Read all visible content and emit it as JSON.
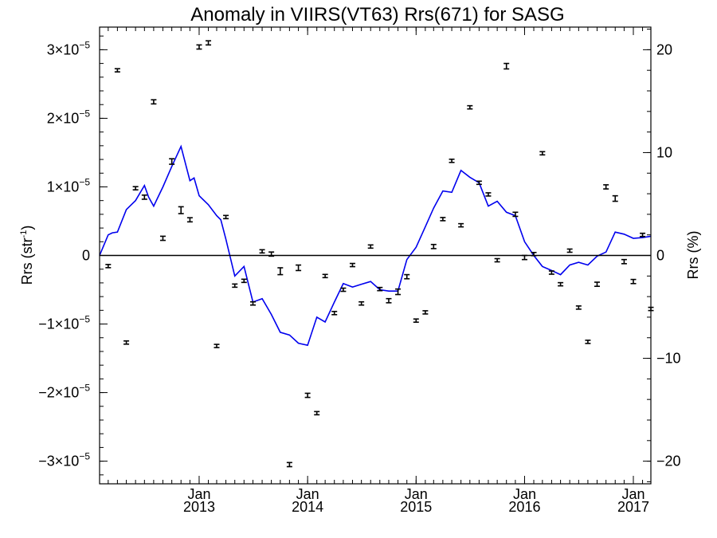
{
  "chart_data": {
    "type": "scatter",
    "title": "Anomaly in VIIRS(VT63) Rrs(671) for SASG",
    "ylabel": "Rrs (str",
    "ylabel_sup": "-1",
    "ylabel_close": ")",
    "y2label": "Rrs (%)",
    "xlim": [
      "2012-02-01",
      "2017-03-01"
    ],
    "ylim": [
      -3.33e-05,
      3.33e-05
    ],
    "y2lim": [
      -22.2,
      22.2
    ],
    "grid": false,
    "x_ticks": [
      {
        "date": "2013-01-01",
        "line1": "Jan",
        "line2": "2013"
      },
      {
        "date": "2014-01-01",
        "line1": "Jan",
        "line2": "2014"
      },
      {
        "date": "2015-01-01",
        "line1": "Jan",
        "line2": "2015"
      },
      {
        "date": "2016-01-01",
        "line1": "Jan",
        "line2": "2016"
      },
      {
        "date": "2017-01-01",
        "line1": "Jan",
        "line2": "2017"
      }
    ],
    "y_ticks": [
      {
        "value": 3e-05,
        "mant": "3×10",
        "exp": "−5"
      },
      {
        "value": 2e-05,
        "mant": "2×10",
        "exp": "−5"
      },
      {
        "value": 1e-05,
        "mant": "1×10",
        "exp": "−5"
      },
      {
        "value": 0,
        "mant": "0",
        "exp": ""
      },
      {
        "value": -1e-05,
        "mant": "−1×10",
        "exp": "−5"
      },
      {
        "value": -2e-05,
        "mant": "−2×10",
        "exp": "−5"
      },
      {
        "value": -3e-05,
        "mant": "−3×10",
        "exp": "−5"
      }
    ],
    "y2_ticks": [
      {
        "value": 20,
        "label": "20"
      },
      {
        "value": 10,
        "label": "10"
      },
      {
        "value": 0,
        "label": "0"
      },
      {
        "value": -10,
        "label": "−10"
      },
      {
        "value": -20,
        "label": "−20"
      }
    ],
    "series": [
      {
        "kind": "points_with_errorbars",
        "color": "#000000",
        "points": [
          {
            "x": "2012-03-01",
            "y": -1.55e-06,
            "err": 2e-07
          },
          {
            "x": "2012-04-01",
            "y": 2.7e-05,
            "err": 2e-07
          },
          {
            "x": "2012-05-01",
            "y": -1.27e-05,
            "err": 2e-07
          },
          {
            "x": "2012-06-01",
            "y": 9.8e-06,
            "err": 2e-07
          },
          {
            "x": "2012-07-01",
            "y": 8.5e-06,
            "err": 3e-07
          },
          {
            "x": "2012-08-01",
            "y": 2.24e-05,
            "err": 3e-07
          },
          {
            "x": "2012-09-01",
            "y": 2.5e-06,
            "err": 3e-07
          },
          {
            "x": "2012-10-01",
            "y": 1.37e-05,
            "err": 4e-07
          },
          {
            "x": "2012-11-01",
            "y": 6.6e-06,
            "err": 5e-07
          },
          {
            "x": "2012-12-01",
            "y": 5.2e-06,
            "err": 3e-07
          },
          {
            "x": "2013-01-01",
            "y": 3.04e-05,
            "err": 3e-07
          },
          {
            "x": "2013-02-01",
            "y": 3.1e-05,
            "err": 3e-07
          },
          {
            "x": "2013-03-01",
            "y": -1.32e-05,
            "err": 2e-07
          },
          {
            "x": "2013-04-01",
            "y": 5.6e-06,
            "err": 2e-07
          },
          {
            "x": "2013-05-01",
            "y": -4.4e-06,
            "err": 2e-07
          },
          {
            "x": "2013-06-01",
            "y": -3.7e-06,
            "err": 2e-07
          },
          {
            "x": "2013-07-01",
            "y": -7e-06,
            "err": 2e-07
          },
          {
            "x": "2013-08-01",
            "y": 6e-07,
            "err": 2e-07
          },
          {
            "x": "2013-09-01",
            "y": 2e-07,
            "err": 3e-07
          },
          {
            "x": "2013-10-01",
            "y": -2.3e-06,
            "err": 5e-07
          },
          {
            "x": "2013-11-01",
            "y": -3.05e-05,
            "err": 3e-07
          },
          {
            "x": "2013-12-01",
            "y": -1.8e-06,
            "err": 4e-07
          },
          {
            "x": "2014-01-01",
            "y": -2.04e-05,
            "err": 3e-07
          },
          {
            "x": "2014-02-01",
            "y": -2.3e-05,
            "err": 2e-07
          },
          {
            "x": "2014-03-01",
            "y": -3e-06,
            "err": 2e-07
          },
          {
            "x": "2014-04-01",
            "y": -8.4e-06,
            "err": 2e-07
          },
          {
            "x": "2014-05-01",
            "y": -5e-06,
            "err": 2e-07
          },
          {
            "x": "2014-06-01",
            "y": -1.4e-06,
            "err": 2e-07
          },
          {
            "x": "2014-07-01",
            "y": -7e-06,
            "err": 2e-07
          },
          {
            "x": "2014-08-01",
            "y": 1.3e-06,
            "err": 2e-07
          },
          {
            "x": "2014-09-01",
            "y": -4.9e-06,
            "err": 2e-07
          },
          {
            "x": "2014-10-01",
            "y": -6.6e-06,
            "err": 3e-07
          },
          {
            "x": "2014-11-01",
            "y": -5.3e-06,
            "err": 4e-07
          },
          {
            "x": "2014-12-01",
            "y": -3.1e-06,
            "err": 3e-07
          },
          {
            "x": "2015-01-01",
            "y": -9.5e-06,
            "err": 2e-07
          },
          {
            "x": "2015-02-01",
            "y": -8.3e-06,
            "err": 2e-07
          },
          {
            "x": "2015-03-01",
            "y": 1.3e-06,
            "err": 3e-07
          },
          {
            "x": "2015-04-01",
            "y": 5.3e-06,
            "err": 2e-07
          },
          {
            "x": "2015-05-01",
            "y": 1.38e-05,
            "err": 2e-07
          },
          {
            "x": "2015-06-01",
            "y": 4.4e-06,
            "err": 2e-07
          },
          {
            "x": "2015-07-01",
            "y": 2.16e-05,
            "err": 2e-07
          },
          {
            "x": "2015-08-01",
            "y": 1.06e-05,
            "err": 2e-07
          },
          {
            "x": "2015-09-01",
            "y": 8.9e-06,
            "err": 2e-07
          },
          {
            "x": "2015-10-01",
            "y": -7e-07,
            "err": 2e-07
          },
          {
            "x": "2015-11-01",
            "y": 2.76e-05,
            "err": 4e-07
          },
          {
            "x": "2015-12-01",
            "y": 6e-06,
            "err": 3e-07
          },
          {
            "x": "2016-01-01",
            "y": -3e-07,
            "err": 3e-07
          },
          {
            "x": "2016-02-01",
            "y": 2e-07,
            "err": 2e-07
          },
          {
            "x": "2016-03-01",
            "y": 1.49e-05,
            "err": 2e-07
          },
          {
            "x": "2016-04-01",
            "y": -2.5e-06,
            "err": 2e-07
          },
          {
            "x": "2016-05-01",
            "y": -4.2e-06,
            "err": 2e-07
          },
          {
            "x": "2016-06-01",
            "y": 7e-07,
            "err": 2e-07
          },
          {
            "x": "2016-07-01",
            "y": -7.6e-06,
            "err": 2e-07
          },
          {
            "x": "2016-08-01",
            "y": -1.26e-05,
            "err": 2e-07
          },
          {
            "x": "2016-09-01",
            "y": -4.2e-06,
            "err": 3e-07
          },
          {
            "x": "2016-10-01",
            "y": 1e-05,
            "err": 3e-07
          },
          {
            "x": "2016-11-01",
            "y": 8.3e-06,
            "err": 4e-07
          },
          {
            "x": "2016-12-01",
            "y": -9e-07,
            "err": 3e-07
          },
          {
            "x": "2017-01-01",
            "y": -3.8e-06,
            "err": 3e-07
          },
          {
            "x": "2017-02-01",
            "y": 3e-06,
            "err": 2e-07
          },
          {
            "x": "2017-03-01",
            "y": -7.8e-06,
            "err": 2e-07
          }
        ]
      },
      {
        "kind": "line",
        "color": "#0000ee",
        "x": [
          "2012-02-01",
          "2012-03-01",
          "2012-03-15",
          "2012-04-01",
          "2012-05-01",
          "2012-06-01",
          "2012-07-01",
          "2012-07-15",
          "2012-08-01",
          "2012-09-01",
          "2012-10-01",
          "2012-11-01",
          "2012-12-01",
          "2012-12-15",
          "2013-01-01",
          "2013-02-01",
          "2013-03-01",
          "2013-03-15",
          "2013-04-01",
          "2013-05-01",
          "2013-06-01",
          "2013-07-01",
          "2013-08-01",
          "2013-09-01",
          "2013-10-01",
          "2013-11-01",
          "2013-12-01",
          "2014-01-01",
          "2014-02-01",
          "2014-03-01",
          "2014-04-01",
          "2014-05-01",
          "2014-06-01",
          "2014-07-01",
          "2014-08-01",
          "2014-09-01",
          "2014-10-01",
          "2014-11-01",
          "2014-12-01",
          "2015-01-01",
          "2015-02-01",
          "2015-03-01",
          "2015-04-01",
          "2015-05-01",
          "2015-06-01",
          "2015-07-01",
          "2015-08-01",
          "2015-09-01",
          "2015-10-01",
          "2015-11-01",
          "2015-12-01",
          "2016-01-01",
          "2016-02-01",
          "2016-03-01",
          "2016-04-01",
          "2016-05-01",
          "2016-06-01",
          "2016-07-01",
          "2016-08-01",
          "2016-09-01",
          "2016-10-01",
          "2016-11-01",
          "2016-12-01",
          "2017-01-01",
          "2017-02-01",
          "2017-03-01"
        ],
        "y": [
          0,
          3e-06,
          3.3e-06,
          3.4e-06,
          6.7e-06,
          8e-06,
          1.02e-05,
          8.5e-06,
          7.2e-06,
          1e-05,
          1.3e-05,
          1.59e-05,
          1.09e-05,
          1.13e-05,
          8.7e-06,
          7.4e-06,
          5.8e-06,
          5.2e-06,
          2.4e-06,
          -3e-06,
          -1.6e-06,
          -6.8e-06,
          -6.3e-06,
          -8.6e-06,
          -1.12e-05,
          -1.16e-05,
          -1.28e-05,
          -1.31e-05,
          -9e-06,
          -9.7e-06,
          -6.8e-06,
          -4.1e-06,
          -4.6e-06,
          -4.2e-06,
          -3.8e-06,
          -5e-06,
          -5.2e-06,
          -5.2e-06,
          -6e-07,
          1.2e-06,
          4.2e-06,
          6.9e-06,
          9.4e-06,
          9.2e-06,
          1.24e-05,
          1.14e-05,
          1.06e-05,
          7.2e-06,
          7.9e-06,
          6.3e-06,
          5.8e-06,
          2e-06,
          0,
          -1.6e-06,
          -2.2e-06,
          -2.8e-06,
          -1.4e-06,
          -1e-06,
          -1.4e-06,
          -1e-07,
          5e-07,
          3.4e-06,
          3.1e-06,
          2.5e-06,
          2.6e-06,
          2.8e-06
        ]
      }
    ]
  }
}
